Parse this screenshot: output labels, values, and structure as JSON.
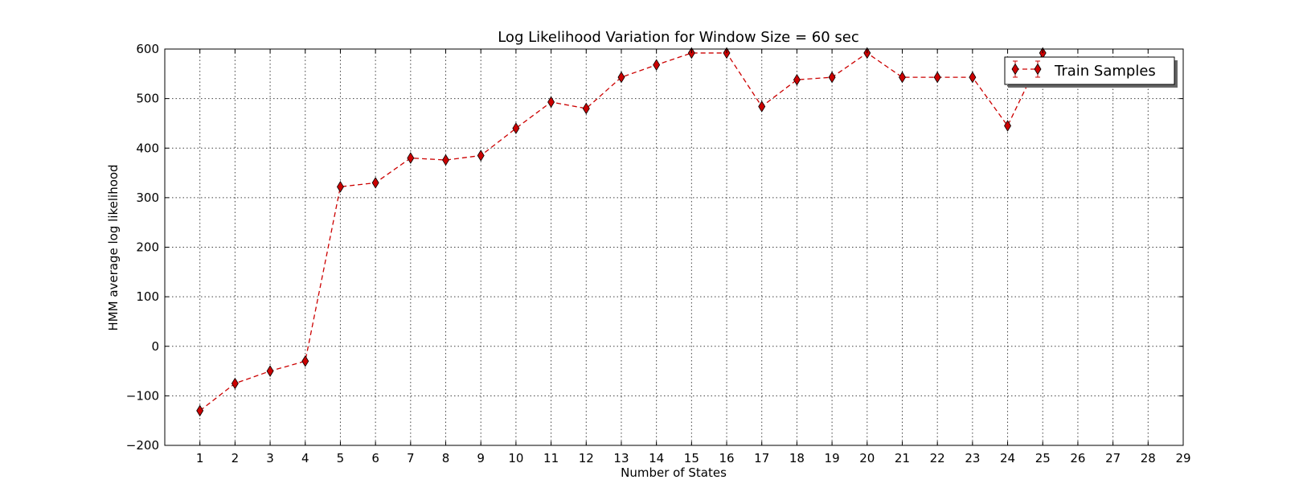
{
  "chart_data": {
    "type": "line",
    "title": "Log Likelihood Variation for Window Size = 60 sec",
    "xlabel": "Number of States",
    "ylabel": "HMM average log likelihood",
    "xlim": [
      0,
      29
    ],
    "ylim": [
      -200,
      600
    ],
    "xticks": [
      1,
      2,
      3,
      4,
      5,
      6,
      7,
      8,
      9,
      10,
      11,
      12,
      13,
      14,
      15,
      16,
      17,
      18,
      19,
      20,
      21,
      22,
      23,
      24,
      25,
      26,
      27,
      28,
      29
    ],
    "yticks": [
      -200,
      -100,
      0,
      100,
      200,
      300,
      400,
      500,
      600
    ],
    "ytick_labels": [
      "−200",
      "−100",
      "0",
      "100",
      "200",
      "300",
      "400",
      "500",
      "600"
    ],
    "grid": true,
    "legend_position": "top-right",
    "series": [
      {
        "name": "Train Samples",
        "color": "#cc0000",
        "marker": "thin_diamond",
        "line_style": "dashed",
        "x": [
          1,
          2,
          3,
          4,
          5,
          6,
          7,
          8,
          9,
          10,
          11,
          12,
          13,
          14,
          15,
          16,
          17,
          18,
          19,
          20,
          21,
          22,
          23,
          24,
          25
        ],
        "y": [
          -130,
          -75,
          -50,
          -30,
          322,
          330,
          380,
          376,
          385,
          440,
          493,
          480,
          543,
          568,
          592,
          592,
          484,
          538,
          543,
          592,
          543,
          543,
          543,
          445,
          592
        ]
      }
    ]
  }
}
